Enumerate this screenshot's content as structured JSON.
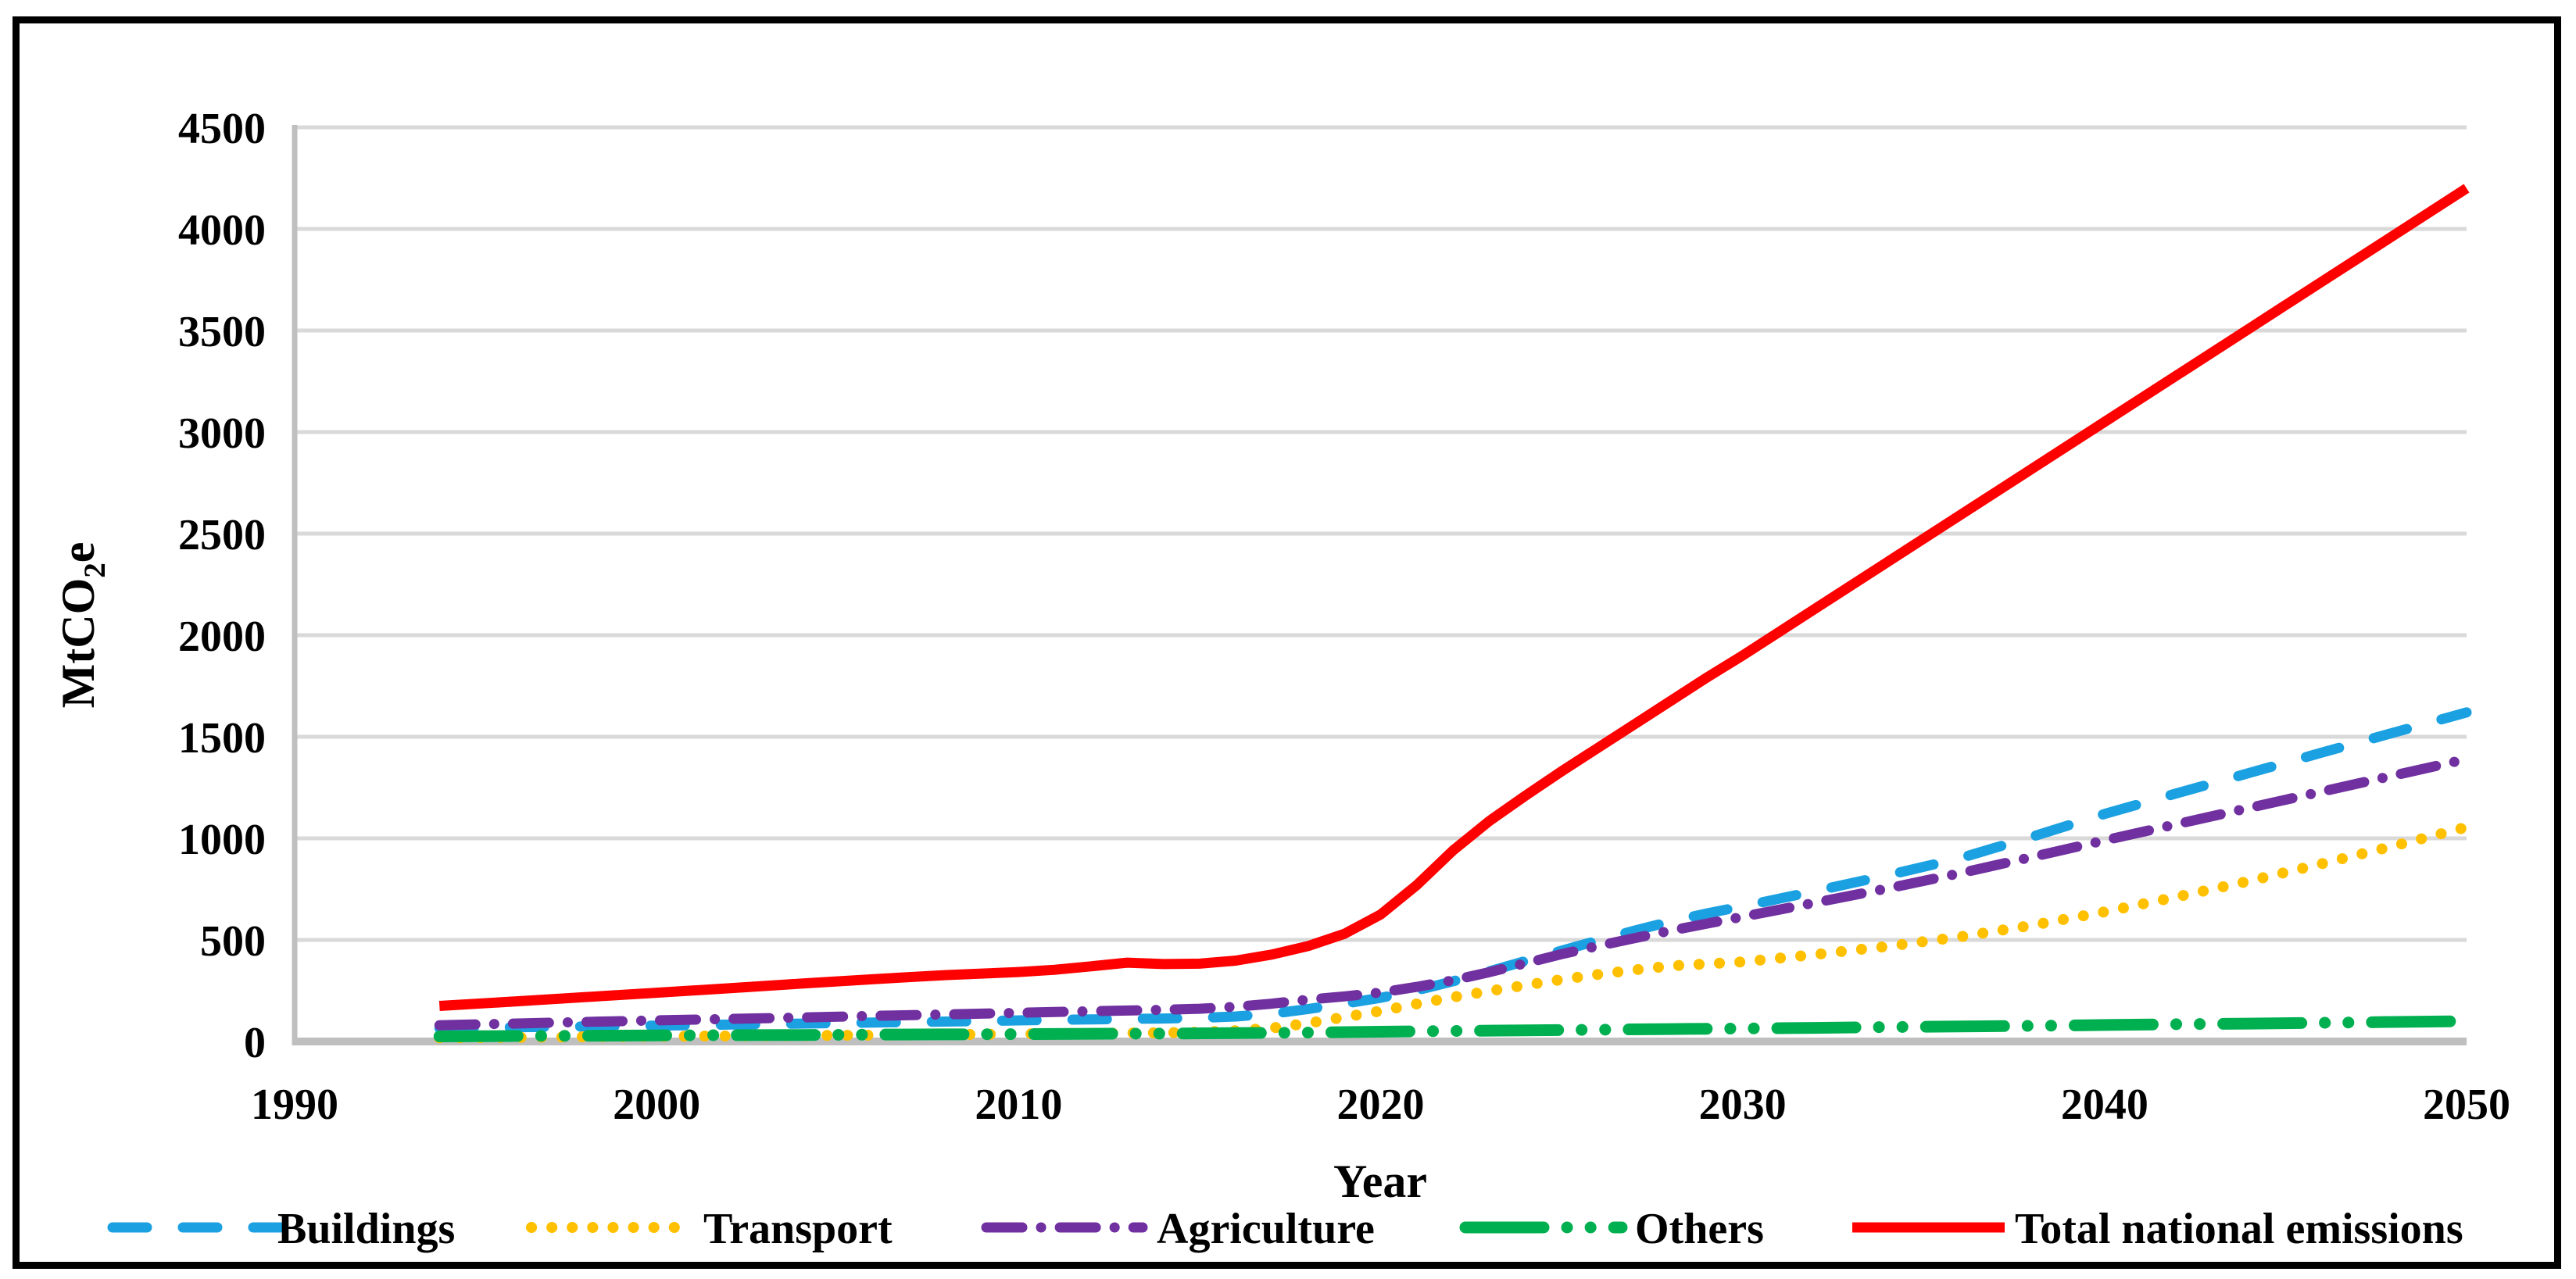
{
  "figure": {
    "background": "#FFFFFF",
    "border_color": "#000000"
  },
  "styles": {
    "gridline_color": "#D9D9D9",
    "axis_color": "#BFBFBF",
    "text_color": "#000000"
  },
  "chart_data": {
    "type": "line",
    "title": "",
    "xlabel": "Year",
    "ylabel": "MtCO2e",
    "ylabel_parts": {
      "base": "MtCO",
      "subscript": "2",
      "suffix": "e"
    },
    "xlim": [
      1990,
      2050
    ],
    "ylim": [
      0,
      4500
    ],
    "x_ticks": [
      1990,
      2000,
      2010,
      2020,
      2030,
      2040,
      2050
    ],
    "y_ticks": [
      0,
      500,
      1000,
      1500,
      2000,
      2500,
      3000,
      3500,
      4000,
      4500
    ],
    "grid": true,
    "legend_position": "bottom",
    "series": [
      {
        "name": "Buildings",
        "color": "#1BA1E2",
        "style": "dashed",
        "points": [
          [
            1994,
            65
          ],
          [
            1996,
            70
          ],
          [
            1998,
            74
          ],
          [
            2000,
            78
          ],
          [
            2002,
            83
          ],
          [
            2004,
            88
          ],
          [
            2006,
            93
          ],
          [
            2008,
            98
          ],
          [
            2010,
            104
          ],
          [
            2012,
            109
          ],
          [
            2014,
            113
          ],
          [
            2015,
            116
          ],
          [
            2016,
            123
          ],
          [
            2017,
            136
          ],
          [
            2018,
            160
          ],
          [
            2019,
            186
          ],
          [
            2020,
            215
          ],
          [
            2021,
            252
          ],
          [
            2022,
            296
          ],
          [
            2023,
            345
          ],
          [
            2024,
            396
          ],
          [
            2025,
            447
          ],
          [
            2026,
            497
          ],
          [
            2027,
            545
          ],
          [
            2028,
            590
          ],
          [
            2029,
            630
          ],
          [
            2030,
            665
          ],
          [
            2032,
            740
          ],
          [
            2034,
            818
          ],
          [
            2036,
            902
          ],
          [
            2038,
            1008
          ],
          [
            2040,
            1120
          ],
          [
            2042,
            1222
          ],
          [
            2044,
            1322
          ],
          [
            2046,
            1422
          ],
          [
            2048,
            1521
          ],
          [
            2050,
            1620
          ]
        ]
      },
      {
        "name": "Transport",
        "color": "#FFC000",
        "style": "dotted",
        "points": [
          [
            1994,
            18
          ],
          [
            1996,
            20
          ],
          [
            1998,
            23
          ],
          [
            2000,
            25
          ],
          [
            2002,
            27
          ],
          [
            2004,
            29
          ],
          [
            2006,
            31
          ],
          [
            2008,
            34
          ],
          [
            2010,
            37
          ],
          [
            2012,
            40
          ],
          [
            2014,
            43
          ],
          [
            2015,
            46
          ],
          [
            2016,
            53
          ],
          [
            2017,
            66
          ],
          [
            2018,
            90
          ],
          [
            2019,
            120
          ],
          [
            2020,
            150
          ],
          [
            2021,
            185
          ],
          [
            2022,
            218
          ],
          [
            2023,
            248
          ],
          [
            2024,
            277
          ],
          [
            2025,
            305
          ],
          [
            2026,
            330
          ],
          [
            2027,
            352
          ],
          [
            2028,
            372
          ],
          [
            2029,
            382
          ],
          [
            2030,
            392
          ],
          [
            2032,
            428
          ],
          [
            2034,
            468
          ],
          [
            2036,
            515
          ],
          [
            2038,
            572
          ],
          [
            2040,
            638
          ],
          [
            2042,
            712
          ],
          [
            2044,
            790
          ],
          [
            2046,
            875
          ],
          [
            2048,
            963
          ],
          [
            2050,
            1055
          ]
        ]
      },
      {
        "name": "Agriculture",
        "color": "#7030A0",
        "style": "dash-dot",
        "points": [
          [
            1994,
            80
          ],
          [
            1996,
            88
          ],
          [
            1998,
            96
          ],
          [
            2000,
            104
          ],
          [
            2002,
            111
          ],
          [
            2004,
            118
          ],
          [
            2006,
            126
          ],
          [
            2008,
            133
          ],
          [
            2010,
            141
          ],
          [
            2012,
            149
          ],
          [
            2014,
            156
          ],
          [
            2015,
            161
          ],
          [
            2016,
            171
          ],
          [
            2017,
            186
          ],
          [
            2018,
            206
          ],
          [
            2019,
            222
          ],
          [
            2020,
            241
          ],
          [
            2021,
            269
          ],
          [
            2022,
            301
          ],
          [
            2023,
            341
          ],
          [
            2024,
            385
          ],
          [
            2025,
            430
          ],
          [
            2026,
            470
          ],
          [
            2027,
            508
          ],
          [
            2028,
            545
          ],
          [
            2029,
            580
          ],
          [
            2030,
            614
          ],
          [
            2032,
            683
          ],
          [
            2034,
            753
          ],
          [
            2036,
            828
          ],
          [
            2038,
            908
          ],
          [
            2040,
            990
          ],
          [
            2042,
            1070
          ],
          [
            2044,
            1150
          ],
          [
            2046,
            1230
          ],
          [
            2048,
            1310
          ],
          [
            2050,
            1390
          ]
        ]
      },
      {
        "name": "Others",
        "color": "#00B050",
        "style": "dash-dot-dot",
        "points": [
          [
            1994,
            25
          ],
          [
            1996,
            27
          ],
          [
            1998,
            28
          ],
          [
            2000,
            30
          ],
          [
            2002,
            31
          ],
          [
            2004,
            32
          ],
          [
            2006,
            34
          ],
          [
            2008,
            35
          ],
          [
            2010,
            36
          ],
          [
            2012,
            38
          ],
          [
            2014,
            39
          ],
          [
            2016,
            41
          ],
          [
            2018,
            44
          ],
          [
            2020,
            48
          ],
          [
            2022,
            52
          ],
          [
            2024,
            55
          ],
          [
            2026,
            58
          ],
          [
            2028,
            61
          ],
          [
            2030,
            64
          ],
          [
            2032,
            67
          ],
          [
            2034,
            71
          ],
          [
            2036,
            74
          ],
          [
            2038,
            77
          ],
          [
            2040,
            81
          ],
          [
            2042,
            85
          ],
          [
            2044,
            88
          ],
          [
            2046,
            92
          ],
          [
            2048,
            96
          ],
          [
            2050,
            100
          ]
        ]
      },
      {
        "name": "Total national emissions",
        "color": "#FF0000",
        "style": "solid",
        "points": [
          [
            1994,
            175
          ],
          [
            1996,
            196
          ],
          [
            1998,
            218
          ],
          [
            2000,
            240
          ],
          [
            2002,
            262
          ],
          [
            2004,
            285
          ],
          [
            2006,
            307
          ],
          [
            2008,
            327
          ],
          [
            2010,
            342
          ],
          [
            2011,
            353
          ],
          [
            2012,
            370
          ],
          [
            2013,
            388
          ],
          [
            2014,
            381
          ],
          [
            2015,
            383
          ],
          [
            2016,
            398
          ],
          [
            2017,
            428
          ],
          [
            2018,
            470
          ],
          [
            2019,
            530
          ],
          [
            2020,
            625
          ],
          [
            2021,
            770
          ],
          [
            2022,
            940
          ],
          [
            2023,
            1085
          ],
          [
            2024,
            1210
          ],
          [
            2025,
            1330
          ],
          [
            2026,
            1445
          ],
          [
            2027,
            1560
          ],
          [
            2028,
            1675
          ],
          [
            2029,
            1790
          ],
          [
            2030,
            1900
          ],
          [
            2032,
            2130
          ],
          [
            2034,
            2360
          ],
          [
            2036,
            2590
          ],
          [
            2038,
            2820
          ],
          [
            2040,
            3050
          ],
          [
            2042,
            3280
          ],
          [
            2044,
            3510
          ],
          [
            2046,
            3740
          ],
          [
            2048,
            3970
          ],
          [
            2050,
            4200
          ]
        ]
      }
    ]
  }
}
